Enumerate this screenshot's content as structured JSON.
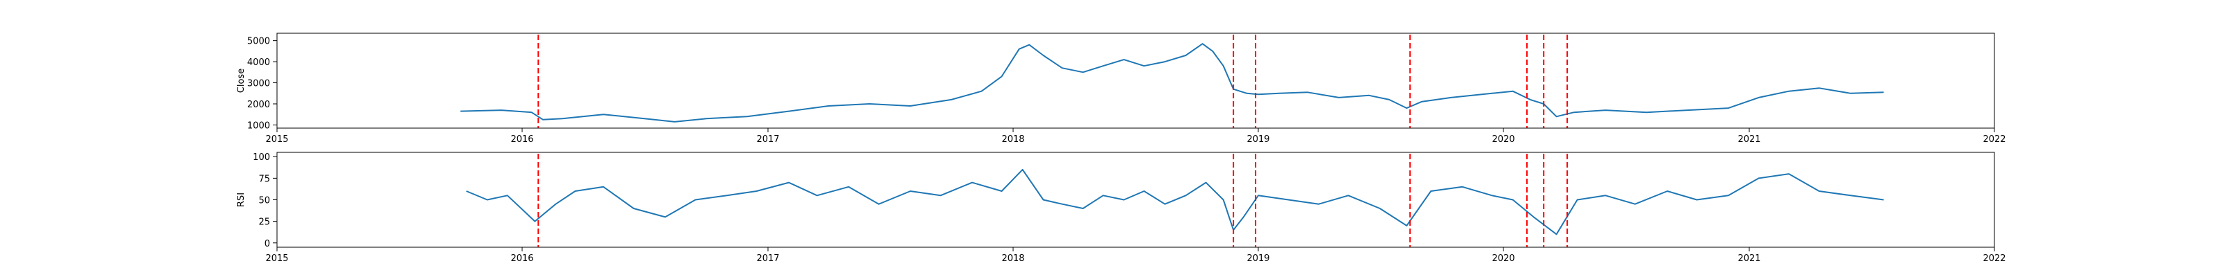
{
  "colors": {
    "line": "#1f77b4",
    "event_line": "#ff0000",
    "axes": "#000000"
  },
  "chart_data": [
    {
      "type": "line",
      "title": "",
      "xlabel": "",
      "ylabel": "Close",
      "xlim": [
        "2015-01-01",
        "2022-01-01"
      ],
      "ylim": [
        850,
        5350
      ],
      "x_ticks": [
        "2015",
        "2016",
        "2017",
        "2018",
        "2019",
        "2020",
        "2021",
        "2022"
      ],
      "y_ticks": [
        1000,
        2000,
        3000,
        4000,
        5000
      ],
      "grid": false,
      "series": [
        {
          "x": [
            "2015-10-01",
            "2015-12-01",
            "2016-01-15",
            "2016-02-01",
            "2016-03-01",
            "2016-05-01",
            "2016-07-01",
            "2016-08-15",
            "2016-10-01",
            "2016-12-01",
            "2017-02-01",
            "2017-04-01",
            "2017-06-01",
            "2017-08-01",
            "2017-10-01",
            "2017-11-15",
            "2017-12-15",
            "2018-01-10",
            "2018-01-25",
            "2018-02-15",
            "2018-03-15",
            "2018-04-15",
            "2018-05-15",
            "2018-06-15",
            "2018-07-15",
            "2018-08-15",
            "2018-09-15",
            "2018-10-10",
            "2018-10-25",
            "2018-11-10",
            "2018-11-25",
            "2018-12-15",
            "2019-01-01",
            "2019-02-01",
            "2019-03-15",
            "2019-05-01",
            "2019-06-15",
            "2019-07-15",
            "2019-08-10",
            "2019-09-01",
            "2019-10-15",
            "2019-12-15",
            "2020-01-15",
            "2020-02-10",
            "2020-03-01",
            "2020-03-20",
            "2020-04-15",
            "2020-06-01",
            "2020-08-01",
            "2020-10-01",
            "2020-12-01",
            "2021-01-15",
            "2021-03-01",
            "2021-04-15",
            "2021-06-01",
            "2021-07-20"
          ],
          "y": [
            1650,
            1700,
            1600,
            1250,
            1300,
            1500,
            1300,
            1150,
            1300,
            1400,
            1650,
            1900,
            2000,
            1900,
            2200,
            2600,
            3300,
            4600,
            4800,
            4300,
            3700,
            3500,
            3800,
            4100,
            3800,
            4000,
            4300,
            4850,
            4500,
            3800,
            2700,
            2500,
            2450,
            2500,
            2550,
            2300,
            2400,
            2200,
            1800,
            2100,
            2300,
            2500,
            2600,
            2200,
            2000,
            1400,
            1600,
            1700,
            1600,
            1700,
            1800,
            2300,
            2600,
            2750,
            2500,
            2550
          ]
        }
      ]
    },
    {
      "type": "line",
      "title": "",
      "xlabel": "",
      "ylabel": "RSI",
      "xlim": [
        "2015-01-01",
        "2022-01-01"
      ],
      "ylim": [
        -5,
        105
      ],
      "x_ticks": [
        "2015",
        "2016",
        "2017",
        "2018",
        "2019",
        "2020",
        "2021",
        "2022"
      ],
      "y_ticks": [
        0,
        25,
        50,
        75,
        100
      ],
      "grid": false,
      "series": [
        {
          "x": [
            "2015-10-10",
            "2015-11-10",
            "2015-12-10",
            "2016-01-20",
            "2016-02-20",
            "2016-03-20",
            "2016-05-01",
            "2016-06-15",
            "2016-08-01",
            "2016-09-15",
            "2016-11-01",
            "2016-12-15",
            "2017-02-01",
            "2017-03-15",
            "2017-05-01",
            "2017-06-15",
            "2017-08-01",
            "2017-09-15",
            "2017-11-01",
            "2017-12-15",
            "2018-01-15",
            "2018-02-15",
            "2018-03-15",
            "2018-04-15",
            "2018-05-15",
            "2018-06-15",
            "2018-07-15",
            "2018-08-15",
            "2018-09-15",
            "2018-10-15",
            "2018-11-10",
            "2018-11-25",
            "2018-12-10",
            "2019-01-01",
            "2019-02-15",
            "2019-04-01",
            "2019-05-15",
            "2019-07-01",
            "2019-08-10",
            "2019-09-15",
            "2019-11-01",
            "2019-12-15",
            "2020-01-15",
            "2020-02-15",
            "2020-03-20",
            "2020-04-20",
            "2020-06-01",
            "2020-07-15",
            "2020-09-01",
            "2020-10-15",
            "2020-12-01",
            "2021-01-15",
            "2021-03-01",
            "2021-04-15",
            "2021-06-01",
            "2021-07-20"
          ],
          "y": [
            60,
            50,
            55,
            25,
            45,
            60,
            65,
            40,
            30,
            50,
            55,
            60,
            70,
            55,
            65,
            45,
            60,
            55,
            70,
            60,
            85,
            50,
            45,
            40,
            55,
            50,
            60,
            45,
            55,
            70,
            50,
            15,
            30,
            55,
            50,
            45,
            55,
            40,
            20,
            60,
            65,
            55,
            50,
            30,
            10,
            50,
            55,
            45,
            60,
            50,
            55,
            75,
            80,
            60,
            55,
            50
          ]
        }
      ]
    }
  ],
  "event_lines": [
    "2016-01-25",
    "2018-11-25",
    "2018-12-28",
    "2019-08-15",
    "2020-02-05",
    "2020-03-01",
    "2020-04-05"
  ]
}
